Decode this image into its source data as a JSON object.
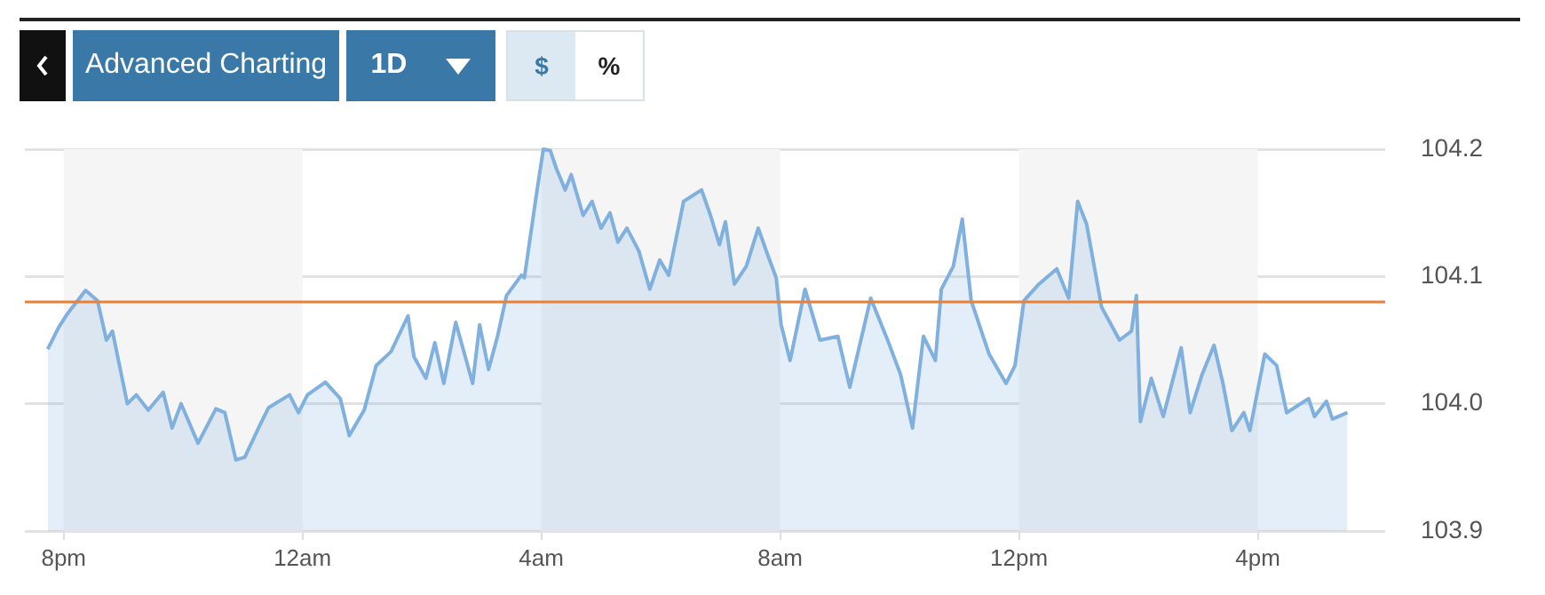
{
  "chart_data": {
    "type": "area",
    "annotations": [
      "Advanced Charting",
      "1D",
      "$",
      "%"
    ],
    "x": [
      "--01-01T19:44",
      "--01-01T19:55",
      "--01-01T20:04",
      "--01-01T20:22",
      "--01-01T20:34",
      "--01-01T20:43",
      "--01-01T20:49",
      "--01-01T21:04",
      "--01-01T21:13",
      "--01-01T21:25",
      "--01-01T21:40",
      "--01-01T21:49",
      "--01-01T21:58",
      "--01-01T22:15",
      "--01-01T22:33",
      "--01-01T22:42",
      "--01-01T22:53",
      "--01-01T23:02",
      "--01-01T23:17",
      "--01-01T23:26",
      "--01-01T23:47",
      "--01-01T23:56",
      "--01-02T00:05",
      "--01-02T00:23",
      "--01-02T00:38",
      "--01-02T00:47",
      "--01-02T01:02",
      "--01-02T01:14",
      "--01-02T01:29",
      "--01-02T01:46",
      "--01-02T01:52",
      "--01-02T02:04",
      "--01-02T02:13",
      "--01-02T02:22",
      "--01-02T02:34",
      "--01-02T02:51",
      "--01-02T02:58",
      "--01-02T03:07",
      "--01-02T03:16",
      "--01-02T03:25",
      "--01-02T03:40",
      "--01-02T03:43",
      "--01-02T03:55",
      "--01-02T04:02",
      "--01-02T04:09",
      "--01-02T04:15",
      "--01-02T04:24",
      "--01-02T04:30",
      "--01-02T04:42",
      "--01-02T04:51",
      "--01-02T05:00",
      "--01-02T05:09",
      "--01-02T05:17",
      "--01-02T05:26",
      "--01-02T05:38",
      "--01-02T05:49",
      "--01-02T05:59",
      "--01-02T06:08",
      "--01-02T06:23",
      "--01-02T06:41",
      "--01-02T06:50",
      "--01-02T06:59",
      "--01-02T07:05",
      "--01-02T07:14",
      "--01-02T07:26",
      "--01-02T07:38",
      "--01-02T07:47",
      "--01-02T07:56",
      "--01-02T08:01",
      "--01-02T08:10",
      "--01-02T08:25",
      "--01-02T08:40",
      "--01-02T08:58",
      "--01-02T09:10",
      "--01-02T09:31",
      "--01-02T09:49",
      "--01-02T10:01",
      "--01-02T10:13",
      "--01-02T10:24",
      "--01-02T10:36",
      "--01-02T10:42",
      "--01-02T10:54",
      "--01-02T11:03",
      "--01-02T11:12",
      "--01-02T11:30",
      "--01-02T11:47",
      "--01-02T11:56",
      "--01-02T12:05",
      "--01-02T12:20",
      "--01-02T12:38",
      "--01-02T12:50",
      "--01-02T12:59",
      "--01-02T13:08",
      "--01-02T13:23",
      "--01-02T13:41",
      "--01-02T13:53",
      "--01-02T13:58",
      "--01-02T14:02",
      "--01-02T14:13",
      "--01-02T14:25",
      "--01-02T14:43",
      "--01-02T14:52",
      "--01-02T15:04",
      "--01-02T15:16",
      "--01-02T15:25",
      "--01-02T15:34",
      "--01-02T15:46",
      "--01-02T15:52",
      "--01-02T16:07",
      "--01-02T16:19",
      "--01-02T16:29",
      "--01-02T16:51",
      "--01-02T16:57",
      "--01-02T17:09",
      "--01-02T17:15",
      "--01-02T17:30"
    ],
    "series": [
      {
        "color": "#7fb0de",
        "values": [
          104.043,
          104.06,
          104.071,
          104.089,
          104.081,
          104.05,
          104.057,
          104.0,
          104.007,
          103.995,
          104.009,
          103.981,
          104.0,
          103.969,
          103.996,
          103.993,
          103.956,
          103.958,
          103.983,
          103.997,
          104.007,
          103.993,
          104.007,
          104.017,
          104.004,
          103.975,
          103.995,
          104.03,
          104.041,
          104.069,
          104.037,
          104.02,
          104.048,
          104.016,
          104.064,
          104.016,
          104.062,
          104.027,
          104.053,
          104.085,
          104.101,
          104.099,
          104.164,
          104.2,
          104.199,
          104.185,
          104.168,
          104.18,
          104.148,
          104.159,
          104.138,
          104.15,
          104.127,
          104.138,
          104.12,
          104.09,
          104.113,
          104.101,
          104.159,
          104.168,
          104.148,
          104.125,
          104.143,
          104.094,
          104.108,
          104.138,
          104.118,
          104.099,
          104.062,
          104.034,
          104.09,
          104.05,
          104.053,
          104.013,
          104.083,
          104.048,
          104.023,
          103.981,
          104.053,
          104.034,
          104.09,
          104.108,
          104.145,
          104.081,
          104.039,
          104.016,
          104.03,
          104.081,
          104.094,
          104.106,
          104.083,
          104.159,
          104.141,
          104.076,
          104.05,
          104.057,
          104.085,
          103.986,
          104.02,
          103.99,
          104.044,
          103.993,
          104.023,
          104.046,
          104.016,
          103.979,
          103.993,
          103.979,
          104.039,
          104.03,
          103.993,
          104.004,
          103.99,
          104.002,
          103.988,
          103.993
        ]
      }
    ],
    "xlim": [
      "--01-01T19:21",
      "--01-02T18:08"
    ],
    "xticks": [
      {
        "value": "--01-01T20:00",
        "label": "8pm"
      },
      {
        "value": "--01-02T00:00",
        "label": "12am"
      },
      {
        "value": "--01-02T04:00",
        "label": "4am"
      },
      {
        "value": "--01-02T08:00",
        "label": "8am"
      },
      {
        "value": "--01-02T12:00",
        "label": "12pm"
      },
      {
        "value": "--01-02T16:00",
        "label": "4pm"
      }
    ],
    "ylim": [
      103.9,
      104.2
    ],
    "yticks": [
      103.9,
      {
        "value": 104,
        "label": "104.0"
      },
      104.1,
      104.2
    ],
    "grid": "y",
    "legend": false,
    "marker": "none",
    "line_style": "solid",
    "ref_lines": [
      {
        "axis": "y",
        "value": 104.08,
        "color": "#e8803a"
      }
    ],
    "bands": [
      {
        "axis": "x",
        "from": "--01-01T20:00",
        "to": "--01-02T00:00",
        "color": "#f5f5f5"
      },
      {
        "axis": "x",
        "from": "--01-02T04:00",
        "to": "--01-02T08:00",
        "color": "#f5f5f5"
      },
      {
        "axis": "x",
        "from": "--01-02T12:00",
        "to": "--01-02T16:00",
        "color": "#f5f5f5"
      }
    ]
  }
}
